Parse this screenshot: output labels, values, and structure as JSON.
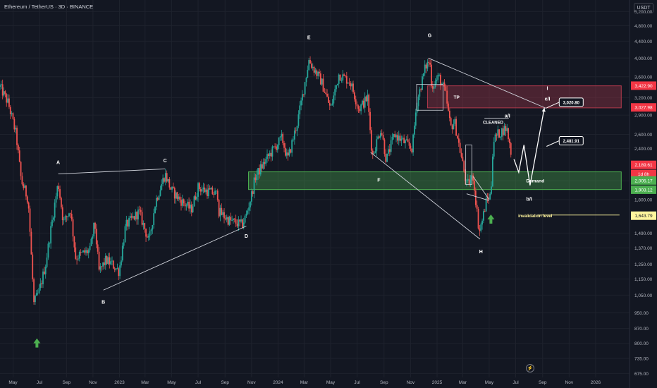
{
  "header": {
    "title": "Ethereum / TetherUS · 3D · BINANCE",
    "currency": "USDT",
    "bolt": "⚡"
  },
  "chart_data": {
    "type": "candlestick",
    "log_scale": true,
    "ylim": [
      660,
      5550
    ],
    "y_ticks": [
      5200,
      4800,
      4400,
      4000,
      3600,
      3200,
      2900,
      2600,
      2400,
      2000,
      1800,
      1490,
      1370,
      1250,
      1150,
      1050,
      950,
      870,
      800,
      735,
      675
    ],
    "y_tick_labels": [
      "5,200.00",
      "4,800.00",
      "4,400.00",
      "4,000.00",
      "3,600.00",
      "3,200.00",
      "2,900.00",
      "2,600.00",
      "2,400.00",
      "2,000.00",
      "1,800.00",
      "1,490.00",
      "1,370.00",
      "1,250.00",
      "1,150.00",
      "1,050.00",
      "950.00",
      "870.00",
      "800.00",
      "735.00",
      "675.00"
    ],
    "x_ticks": [
      {
        "label": "May",
        "date": "2022-05-01"
      },
      {
        "label": "Jul",
        "date": "2022-07-01"
      },
      {
        "label": "Sep",
        "date": "2022-09-01"
      },
      {
        "label": "Nov",
        "date": "2022-11-01"
      },
      {
        "label": "2023",
        "date": "2023-01-01"
      },
      {
        "label": "Mar",
        "date": "2023-03-01"
      },
      {
        "label": "May",
        "date": "2023-05-01"
      },
      {
        "label": "Jul",
        "date": "2023-07-01"
      },
      {
        "label": "Sep",
        "date": "2023-09-01"
      },
      {
        "label": "Nov",
        "date": "2023-11-01"
      },
      {
        "label": "2024",
        "date": "2024-01-01"
      },
      {
        "label": "Mar",
        "date": "2024-03-01"
      },
      {
        "label": "May",
        "date": "2024-05-01"
      },
      {
        "label": "Jul",
        "date": "2024-07-01"
      },
      {
        "label": "Sep",
        "date": "2024-09-01"
      },
      {
        "label": "Nov",
        "date": "2024-11-01"
      },
      {
        "label": "2025",
        "date": "2025-01-01"
      },
      {
        "label": "Mar",
        "date": "2025-03-01"
      },
      {
        "label": "May",
        "date": "2025-05-01"
      },
      {
        "label": "Jul",
        "date": "2025-07-01"
      },
      {
        "label": "Sep",
        "date": "2025-09-01"
      },
      {
        "label": "Nov",
        "date": "2025-11-01"
      },
      {
        "label": "2026",
        "date": "2026-01-01"
      }
    ],
    "price_path": [
      [
        "2022-04-01",
        3400
      ],
      [
        "2022-04-20",
        3100
      ],
      [
        "2022-05-08",
        2600
      ],
      [
        "2022-05-20",
        2000
      ],
      [
        "2022-06-05",
        1800
      ],
      [
        "2022-06-18",
        1000
      ],
      [
        "2022-07-01",
        1080
      ],
      [
        "2022-07-15",
        1250
      ],
      [
        "2022-08-01",
        1650
      ],
      [
        "2022-08-13",
        1980
      ],
      [
        "2022-08-25",
        1580
      ],
      [
        "2022-09-10",
        1700
      ],
      [
        "2022-09-22",
        1300
      ],
      [
        "2022-10-10",
        1330
      ],
      [
        "2022-10-25",
        1350
      ],
      [
        "2022-11-05",
        1580
      ],
      [
        "2022-11-15",
        1200
      ],
      [
        "2022-12-01",
        1280
      ],
      [
        "2022-12-15",
        1250
      ],
      [
        "2022-12-31",
        1200
      ],
      [
        "2023-01-15",
        1550
      ],
      [
        "2023-02-15",
        1680
      ],
      [
        "2023-03-10",
        1420
      ],
      [
        "2023-03-25",
        1780
      ],
      [
        "2023-04-16",
        2080
      ],
      [
        "2023-04-30",
        1900
      ],
      [
        "2023-05-20",
        1800
      ],
      [
        "2023-06-15",
        1700
      ],
      [
        "2023-07-01",
        1930
      ],
      [
        "2023-07-15",
        1900
      ],
      [
        "2023-08-15",
        1850
      ],
      [
        "2023-08-18",
        1680
      ],
      [
        "2023-09-10",
        1600
      ],
      [
        "2023-10-10",
        1560
      ],
      [
        "2023-10-20",
        1650
      ],
      [
        "2023-11-01",
        1850
      ],
      [
        "2023-11-10",
        2050
      ],
      [
        "2023-12-10",
        2300
      ],
      [
        "2024-01-10",
        2550
      ],
      [
        "2024-01-23",
        2250
      ],
      [
        "2024-02-15",
        2800
      ],
      [
        "2024-03-01",
        3400
      ],
      [
        "2024-03-12",
        3950
      ],
      [
        "2024-04-10",
        3500
      ],
      [
        "2024-05-01",
        3000
      ],
      [
        "2024-05-20",
        3650
      ],
      [
        "2024-06-15",
        3500
      ],
      [
        "2024-07-05",
        3000
      ],
      [
        "2024-07-25",
        3200
      ],
      [
        "2024-08-05",
        2300
      ],
      [
        "2024-08-25",
        2700
      ],
      [
        "2024-09-06",
        2250
      ],
      [
        "2024-09-25",
        2600
      ],
      [
        "2024-10-15",
        2500
      ],
      [
        "2024-11-05",
        2400
      ],
      [
        "2024-11-15",
        3100
      ],
      [
        "2024-12-05",
        3800
      ],
      [
        "2024-12-15",
        3950
      ],
      [
        "2024-12-20",
        3400
      ],
      [
        "2025-01-05",
        3600
      ],
      [
        "2025-01-20",
        3300
      ],
      [
        "2025-02-01",
        2700
      ],
      [
        "2025-02-10",
        2800
      ],
      [
        "2025-03-01",
        2200
      ],
      [
        "2025-03-10",
        1950
      ],
      [
        "2025-03-25",
        2050
      ],
      [
        "2025-04-08",
        1500
      ],
      [
        "2025-04-15",
        1600
      ],
      [
        "2025-04-25",
        1800
      ],
      [
        "2025-05-05",
        1850
      ],
      [
        "2025-05-10",
        2500
      ],
      [
        "2025-05-20",
        2600
      ],
      [
        "2025-06-10",
        2700
      ],
      [
        "2025-06-22",
        2300
      ]
    ],
    "projection_path": [
      [
        "2025-06-27",
        2260
      ],
      [
        "2025-07-08",
        2100
      ],
      [
        "2025-07-20",
        2450
      ],
      [
        "2025-08-03",
        1950
      ],
      [
        "2025-09-05",
        3020
      ]
    ],
    "zones": [
      {
        "label": "TP",
        "from": "2024-12-10",
        "to": "2026-03-01",
        "low": 3020,
        "high": 3420,
        "color": "#b2394c"
      },
      {
        "label": "Demand",
        "from": "2023-10-25",
        "to": "2026-03-01",
        "low": 1905,
        "high": 2105,
        "color": "#4caf50"
      }
    ],
    "wave_labels": [
      {
        "text": "A",
        "date": "2022-08-13",
        "price": 2200
      },
      {
        "text": "B",
        "date": "2022-11-25",
        "price": 1000
      },
      {
        "text": "C",
        "date": "2023-04-16",
        "price": 2220
      },
      {
        "text": "D",
        "date": "2023-10-20",
        "price": 1450
      },
      {
        "text": "E",
        "date": "2024-03-12",
        "price": 4450
      },
      {
        "text": "F",
        "date": "2024-08-20",
        "price": 1990
      },
      {
        "text": "G",
        "date": "2024-12-15",
        "price": 4500
      },
      {
        "text": "H",
        "date": "2025-04-12",
        "price": 1330
      },
      {
        "text": "a/I",
        "date": "2025-06-12",
        "price": 2860
      },
      {
        "text": "b/I",
        "date": "2025-08-01",
        "price": 1790
      },
      {
        "text": "I",
        "date": "2025-09-12",
        "price": 3340
      },
      {
        "text": "c/I",
        "date": "2025-09-12",
        "price": 3150
      }
    ],
    "callouts": [
      {
        "text": "3,020.80",
        "date": "2025-09-10",
        "price": 3020
      },
      {
        "text": "2,481.91",
        "date": "2025-09-10",
        "price": 2430
      }
    ],
    "annotations": [
      {
        "text": "CLEANED",
        "date": "2025-05-10",
        "price": 2780
      },
      {
        "text": "invalidation level",
        "date": "2025-08-15",
        "price": 1643
      }
    ],
    "invalidation_level": 1643.79,
    "price_labels": [
      {
        "text": "3,422.90",
        "price": 3422.9,
        "color": "#f23645"
      },
      {
        "text": "3,027.98",
        "price": 3027.98,
        "color": "#f23645"
      },
      {
        "text": "2,189.61",
        "price": 2189.61,
        "color": "#f23645"
      },
      {
        "text": "1d 8h",
        "price": 2080,
        "color": "#f23645"
      },
      {
        "text": "2,005.17",
        "price": 2005.17,
        "color": "#4caf50"
      },
      {
        "text": "1,903.12",
        "price": 1903.12,
        "color": "#4caf50"
      },
      {
        "text": "1,643.79",
        "price": 1643.79,
        "color": "#fff59d"
      }
    ],
    "bull_arrows": [
      {
        "date": "2022-06-25",
        "price": 800
      },
      {
        "date": "2025-05-05",
        "price": 1610
      }
    ]
  }
}
